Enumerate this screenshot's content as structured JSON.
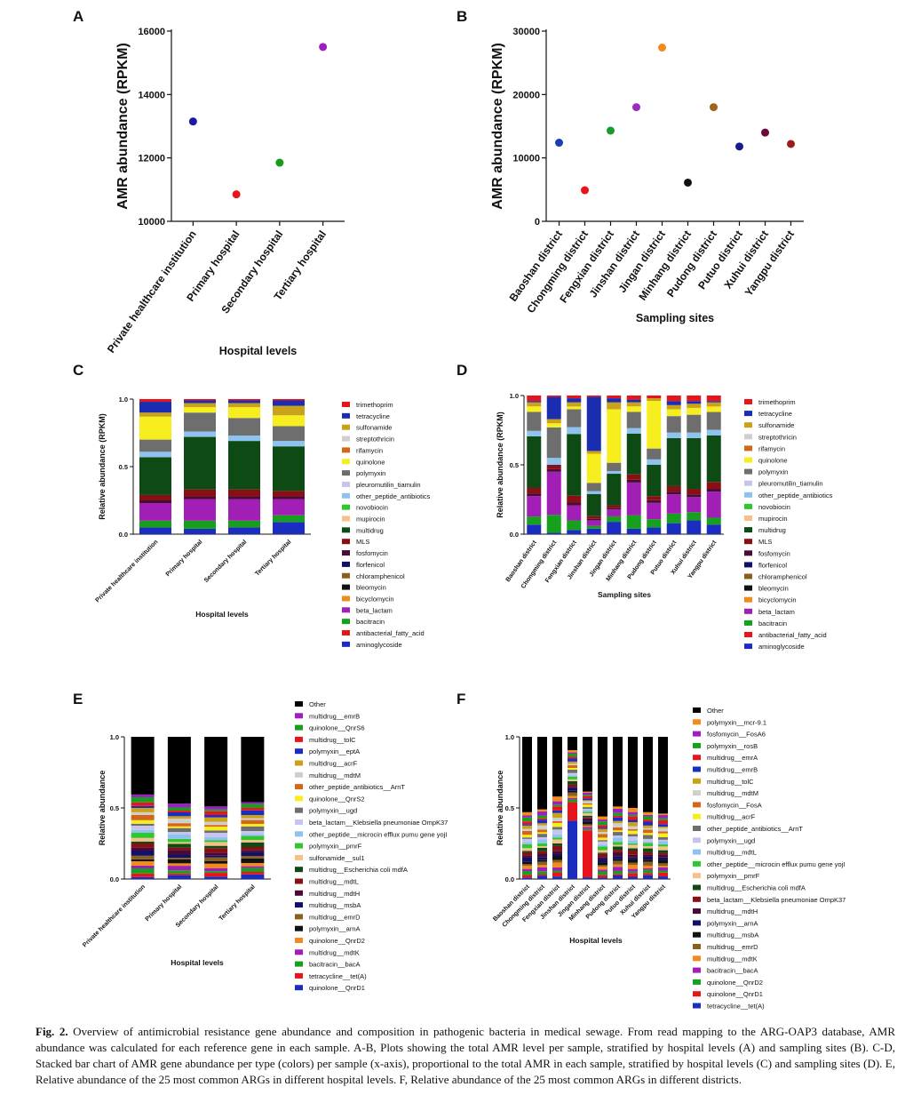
{
  "labels": {
    "a": "A",
    "b": "B",
    "c": "C",
    "d": "D",
    "e": "E",
    "f": "F"
  },
  "caption": {
    "prefix": "Fig. 2.",
    "text": "Overview of antimicrobial resistance gene abundance and composition in pathogenic bacteria in medical sewage. From read mapping to the ARG-OAP3 database, AMR abundance was calculated for each reference gene in each sample. A-B, Plots showing the total AMR level per sample, stratified by hospital levels (A) and sampling sites (B). C-D, Stacked bar chart of AMR gene abundance per type (colors) per sample (x-axis), proportional to the total AMR in each sample, stratified by hospital levels (C) and sampling sites (D). E, Relative abundance of the 25 most common ARGs in different hospital levels. F, Relative abundance of the 25 most common ARGs in different districts."
  },
  "chart_data": [
    {
      "id": "A",
      "type": "scatter",
      "xlabel": "Hospital levels",
      "ylabel": "AMR abundance (RPKM)",
      "ylim": [
        10000,
        16000
      ],
      "yticks": [
        10000,
        12000,
        14000,
        16000
      ],
      "categories": [
        "Private healthcare institution",
        "Primary hospital",
        "Secondary hospital",
        "Tertiary hospital"
      ],
      "values": [
        13150,
        10850,
        11850,
        15500
      ],
      "colors": [
        "#1a1aa6",
        "#e8141c",
        "#1a9a1a",
        "#9c1fc0"
      ]
    },
    {
      "id": "B",
      "type": "scatter",
      "xlabel": "Sampling sites",
      "ylabel": "AMR abundance (RPKM)",
      "ylim": [
        0,
        30000
      ],
      "yticks": [
        0,
        10000,
        20000,
        30000
      ],
      "categories": [
        "Baoshan district",
        "Chongming district",
        "Fengxian district",
        "Jinshan district",
        "Jingan district",
        "Minhang district",
        "Pudong district",
        "Putuo district",
        "Xuhui district",
        "Yangpu district"
      ],
      "values": [
        12400,
        4900,
        14300,
        18000,
        27400,
        6100,
        18000,
        11800,
        14000,
        12200
      ],
      "colors": [
        "#1a3fb0",
        "#e8141c",
        "#1a9a2a",
        "#9c2cc0",
        "#f28a1c",
        "#111111",
        "#a0641c",
        "#1a1a8c",
        "#6a0a3a",
        "#a01c1c"
      ]
    },
    {
      "id": "C",
      "type": "bar",
      "stacked": true,
      "xlabel": "Hospital levels",
      "ylabel": "Relative abundance (RPKM)",
      "ylim": [
        0,
        1
      ],
      "yticks": [
        "0.0",
        "0.5",
        "1.0"
      ],
      "categories": [
        "Private healthcare institution",
        "Primary hospital",
        "Secondary hospital",
        "Tertiary hospital"
      ],
      "legend": [
        {
          "name": "trimethoprim",
          "color": "#e8141c"
        },
        {
          "name": "tetracycline",
          "color": "#1a2db0"
        },
        {
          "name": "sulfonamide",
          "color": "#c9a21a"
        },
        {
          "name": "streptothricin",
          "color": "#cfcfcf"
        },
        {
          "name": "rifamycin",
          "color": "#d4661a"
        },
        {
          "name": "quinolone",
          "color": "#f6ee1e"
        },
        {
          "name": "polymyxin",
          "color": "#6e6e6e"
        },
        {
          "name": "pleuromutilin_tiamulin",
          "color": "#c5c5f0"
        },
        {
          "name": "other_peptide_antibiotics",
          "color": "#8ec3ef"
        },
        {
          "name": "novobiocin",
          "color": "#2ec82e"
        },
        {
          "name": "mupirocin",
          "color": "#f6c08a"
        },
        {
          "name": "multidrug",
          "color": "#0d4a14"
        },
        {
          "name": "MLS",
          "color": "#8a0f14"
        },
        {
          "name": "fosfomycin",
          "color": "#4a0a36"
        },
        {
          "name": "florfenicol",
          "color": "#10106a"
        },
        {
          "name": "chloramphenicol",
          "color": "#8a6020"
        },
        {
          "name": "bleomycin",
          "color": "#111111"
        },
        {
          "name": "bicyclomycin",
          "color": "#f28a1c"
        },
        {
          "name": "beta_lactam",
          "color": "#a11fb5"
        },
        {
          "name": "bacitracin",
          "color": "#16a01e"
        },
        {
          "name": "antibacterial_fatty_acid",
          "color": "#e8141c"
        },
        {
          "name": "aminoglycoside",
          "color": "#1a2dc0"
        }
      ],
      "stack_bottom_up": [
        "aminoglycoside",
        "bacitracin",
        "beta_lactam",
        "fosfomycin",
        "MLS",
        "multidrug",
        "other_peptide_antibiotics",
        "polymyxin",
        "quinolone",
        "sulfonamide",
        "tetracycline",
        "trimethoprim"
      ],
      "series": [
        {
          "name": "aminoglycoside",
          "values": [
            0.05,
            0.04,
            0.05,
            0.09
          ]
        },
        {
          "name": "bacitracin",
          "values": [
            0.05,
            0.06,
            0.05,
            0.05
          ]
        },
        {
          "name": "beta_lactam",
          "values": [
            0.13,
            0.16,
            0.16,
            0.12
          ]
        },
        {
          "name": "fosfomycin",
          "values": [
            0.02,
            0.02,
            0.02,
            0.02
          ]
        },
        {
          "name": "MLS",
          "values": [
            0.04,
            0.05,
            0.05,
            0.04
          ]
        },
        {
          "name": "multidrug",
          "values": [
            0.28,
            0.39,
            0.36,
            0.33
          ]
        },
        {
          "name": "other_peptide_antibiotics",
          "values": [
            0.04,
            0.04,
            0.04,
            0.04
          ]
        },
        {
          "name": "polymyxin",
          "values": [
            0.09,
            0.14,
            0.13,
            0.11
          ]
        },
        {
          "name": "quinolone",
          "values": [
            0.17,
            0.04,
            0.08,
            0.08
          ]
        },
        {
          "name": "sulfonamide",
          "values": [
            0.03,
            0.03,
            0.03,
            0.07
          ]
        },
        {
          "name": "tetracycline",
          "values": [
            0.08,
            0.02,
            0.02,
            0.04
          ]
        },
        {
          "name": "trimethoprim",
          "values": [
            0.02,
            0.01,
            0.01,
            0.01
          ]
        }
      ]
    },
    {
      "id": "D",
      "type": "bar",
      "stacked": true,
      "xlabel": "Sampling sites",
      "ylabel": "Relative abundance (RPKM)",
      "ylim": [
        0,
        1
      ],
      "yticks": [
        "0.0",
        "0.5",
        "1.0"
      ],
      "categories": [
        "Baoshan district",
        "Chongming district",
        "Fengxian district",
        "Jinshan district",
        "Jingan district",
        "Minhang district",
        "Pudong district",
        "Putuo district",
        "Xuhui district",
        "Yangpu district"
      ],
      "legend": [
        {
          "name": "trimethoprim",
          "color": "#e8141c"
        },
        {
          "name": "tetracycline",
          "color": "#1a2db0"
        },
        {
          "name": "sulfonamide",
          "color": "#c9a21a"
        },
        {
          "name": "streptothricin",
          "color": "#cfcfcf"
        },
        {
          "name": "rifamycin",
          "color": "#d4661a"
        },
        {
          "name": "quinolone",
          "color": "#f6ee1e"
        },
        {
          "name": "polymyxin",
          "color": "#6e6e6e"
        },
        {
          "name": "pleuromutilin_tiamulin",
          "color": "#c5c5f0"
        },
        {
          "name": "other_peptide_antibiotics",
          "color": "#8ec3ef"
        },
        {
          "name": "novobiocin",
          "color": "#2ec82e"
        },
        {
          "name": "mupirocin",
          "color": "#f6c08a"
        },
        {
          "name": "multidrug",
          "color": "#0d4a14"
        },
        {
          "name": "MLS",
          "color": "#8a0f14"
        },
        {
          "name": "fosfomycin",
          "color": "#4a0a36"
        },
        {
          "name": "florfenicol",
          "color": "#10106a"
        },
        {
          "name": "chloramphenicol",
          "color": "#8a6020"
        },
        {
          "name": "bleomycin",
          "color": "#111111"
        },
        {
          "name": "bicyclomycin",
          "color": "#f28a1c"
        },
        {
          "name": "beta_lactam",
          "color": "#a11fb5"
        },
        {
          "name": "bacitracin",
          "color": "#16a01e"
        },
        {
          "name": "antibacterial_fatty_acid",
          "color": "#e8141c"
        },
        {
          "name": "aminoglycoside",
          "color": "#1a2dc0"
        }
      ],
      "stack_bottom_up": [
        "aminoglycoside",
        "bacitracin",
        "beta_lactam",
        "fosfomycin",
        "MLS",
        "multidrug",
        "other_peptide_antibiotics",
        "polymyxin",
        "quinolone",
        "sulfonamide",
        "tetracycline",
        "trimethoprim"
      ],
      "series": [
        {
          "name": "aminoglycoside",
          "values": [
            0.07,
            0.01,
            0.03,
            0.04,
            0.09,
            0.04,
            0.05,
            0.08,
            0.1,
            0.07
          ]
        },
        {
          "name": "bacitracin",
          "values": [
            0.06,
            0.13,
            0.07,
            0.02,
            0.04,
            0.1,
            0.06,
            0.07,
            0.06,
            0.05
          ]
        },
        {
          "name": "beta_lactam",
          "values": [
            0.15,
            0.31,
            0.11,
            0.04,
            0.05,
            0.24,
            0.12,
            0.14,
            0.11,
            0.19
          ]
        },
        {
          "name": "fosfomycin",
          "values": [
            0.02,
            0.02,
            0.02,
            0.01,
            0.01,
            0.02,
            0.02,
            0.02,
            0.02,
            0.02
          ]
        },
        {
          "name": "MLS",
          "values": [
            0.04,
            0.03,
            0.05,
            0.02,
            0.02,
            0.04,
            0.03,
            0.04,
            0.04,
            0.05
          ]
        },
        {
          "name": "multidrug",
          "values": [
            0.38,
            0.0,
            0.45,
            0.16,
            0.23,
            0.3,
            0.23,
            0.35,
            0.37,
            0.34
          ]
        },
        {
          "name": "other_peptide_antibiotics",
          "values": [
            0.04,
            0.05,
            0.05,
            0.02,
            0.02,
            0.04,
            0.04,
            0.04,
            0.04,
            0.04
          ]
        },
        {
          "name": "polymyxin",
          "values": [
            0.14,
            0.22,
            0.13,
            0.06,
            0.06,
            0.12,
            0.08,
            0.12,
            0.13,
            0.13
          ]
        },
        {
          "name": "quinolone",
          "values": [
            0.04,
            0.03,
            0.02,
            0.21,
            0.39,
            0.04,
            0.35,
            0.05,
            0.05,
            0.04
          ]
        },
        {
          "name": "sulfonamide",
          "values": [
            0.03,
            0.03,
            0.03,
            0.02,
            0.05,
            0.03,
            0.02,
            0.03,
            0.03,
            0.03
          ]
        },
        {
          "name": "tetracycline",
          "values": [
            0.01,
            0.16,
            0.03,
            0.39,
            0.03,
            0.02,
            0.0,
            0.03,
            0.02,
            0.01
          ]
        },
        {
          "name": "trimethoprim",
          "values": [
            0.04,
            0.01,
            0.02,
            0.01,
            0.02,
            0.03,
            0.02,
            0.04,
            0.04,
            0.04
          ]
        }
      ]
    },
    {
      "id": "E",
      "type": "bar",
      "stacked": true,
      "xlabel": "Hospital levels",
      "ylabel": "Relative abundance",
      "ylim": [
        0,
        1
      ],
      "yticks": [
        "0.0",
        "0.5",
        "1.0"
      ],
      "categories": [
        "Private healthcare institution",
        "Primary hospital",
        "Secondary hospital",
        "Tertiary hospital"
      ],
      "legend": [
        {
          "name": "Other",
          "color": "#000000"
        },
        {
          "name": "multidrug__emrB",
          "color": "#9c1fc0"
        },
        {
          "name": "quinolone__QnrS6",
          "color": "#16a01e"
        },
        {
          "name": "multidrug__tolC",
          "color": "#e8141c"
        },
        {
          "name": "polymyxin__eptA",
          "color": "#1a2dc0"
        },
        {
          "name": "multidrug__acrF",
          "color": "#c9a21a"
        },
        {
          "name": "multidrug__mdtM",
          "color": "#cfcfcf"
        },
        {
          "name": "other_peptide_antibiotics__ArnT",
          "color": "#d4661a"
        },
        {
          "name": "quinolone__QnrS2",
          "color": "#f6ee1e"
        },
        {
          "name": "polymyxin__ugd",
          "color": "#6e6e6e"
        },
        {
          "name": "beta_lactam__Klebsiella pneumoniae OmpK37",
          "color": "#c5c5f0"
        },
        {
          "name": "other_peptide__microcin efflux pumu gene yojI",
          "color": "#8ec3ef"
        },
        {
          "name": "polymyxin__pmrF",
          "color": "#2ec82e"
        },
        {
          "name": "sulfonamide__sul1",
          "color": "#f6c08a"
        },
        {
          "name": "multidrug__Escherichia coli mdfA",
          "color": "#0d4a14"
        },
        {
          "name": "multidrug__mdtL",
          "color": "#8a0f14"
        },
        {
          "name": "multidrug__mdtH",
          "color": "#4a0a36"
        },
        {
          "name": "multidrug__msbA",
          "color": "#10106a"
        },
        {
          "name": "multidrug__emrD",
          "color": "#8a6020"
        },
        {
          "name": "polymyxin__arnA",
          "color": "#111111"
        },
        {
          "name": "quinolone__QnrD2",
          "color": "#f28a1c"
        },
        {
          "name": "multidrug__mdtK",
          "color": "#a11fb5"
        },
        {
          "name": "bacitracin__bacA",
          "color": "#16a01e"
        },
        {
          "name": "tetracycline__tet(A)",
          "color": "#e8141c"
        },
        {
          "name": "quinolone__QnrD1",
          "color": "#1a2dc0"
        }
      ],
      "other_values": [
        0.4,
        0.47,
        0.48,
        0.46
      ]
    },
    {
      "id": "F",
      "type": "bar",
      "stacked": true,
      "xlabel": "Hospital levels",
      "ylabel": "Relative abundance",
      "ylim": [
        0,
        1
      ],
      "yticks": [
        "0.0",
        "0.5",
        "1.0"
      ],
      "categories": [
        "Baoshan district",
        "Chongming district",
        "Fengxian district",
        "Jinshan district",
        "Jingan district",
        "Minhang district",
        "Pudong district",
        "Putuo district",
        "Xuhui district",
        "Yangpu district"
      ],
      "legend": [
        {
          "name": "Other",
          "color": "#000000"
        },
        {
          "name": "polymyxin__mcr-9.1",
          "color": "#f28a1c"
        },
        {
          "name": "fosfomycin__FosA6",
          "color": "#9c1fc0"
        },
        {
          "name": "polymyxin__rosB",
          "color": "#16a01e"
        },
        {
          "name": "multidrug__emrA",
          "color": "#e8141c"
        },
        {
          "name": "multidrug__emrB",
          "color": "#1a2dc0"
        },
        {
          "name": "multidrug__tolC",
          "color": "#c9a21a"
        },
        {
          "name": "multidrug__mdtM",
          "color": "#cfcfcf"
        },
        {
          "name": "fosfomycin__FosA",
          "color": "#d4661a"
        },
        {
          "name": "multidrug__acrF",
          "color": "#f6ee1e"
        },
        {
          "name": "other_peptide_antibiotics__ArnT",
          "color": "#6e6e6e"
        },
        {
          "name": "polymyxin__ugd",
          "color": "#c5c5f0"
        },
        {
          "name": "multidrug__mdtL",
          "color": "#8ec3ef"
        },
        {
          "name": "other_peptide__microcin efflux pumu gene yojI",
          "color": "#2ec82e"
        },
        {
          "name": "polymyxin__pmrF",
          "color": "#f6c08a"
        },
        {
          "name": "multidrug__Escherichia coli mdfA",
          "color": "#0d4a14"
        },
        {
          "name": "beta_lactam__Klebsiella pneumoniae OmpK37",
          "color": "#8a0f14"
        },
        {
          "name": "multidrug__mdtH",
          "color": "#4a0a36"
        },
        {
          "name": "polymyxin__arnA",
          "color": "#10106a"
        },
        {
          "name": "multidrug__msbA",
          "color": "#111111"
        },
        {
          "name": "multidrug__emrD",
          "color": "#8a6020"
        },
        {
          "name": "multidrug__mdtK",
          "color": "#f28a1c"
        },
        {
          "name": "bacitracin__bacA",
          "color": "#a11fb5"
        },
        {
          "name": "quinolone__QnrD2",
          "color": "#16a01e"
        },
        {
          "name": "quinolone__QnrD1",
          "color": "#e8141c"
        },
        {
          "name": "tetracycline__tet(A)",
          "color": "#1a2dc0"
        }
      ],
      "other_values": [
        0.53,
        0.51,
        0.42,
        0.09,
        0.38,
        0.56,
        0.49,
        0.5,
        0.53,
        0.54
      ],
      "notable": {
        "Jinshan district": {
          "tetracycline__tet(A)": 0.41,
          "quinolone__QnrD1": 0.13
        },
        "Jingan district": {
          "quinolone__QnrD1": 0.33
        }
      }
    }
  ]
}
